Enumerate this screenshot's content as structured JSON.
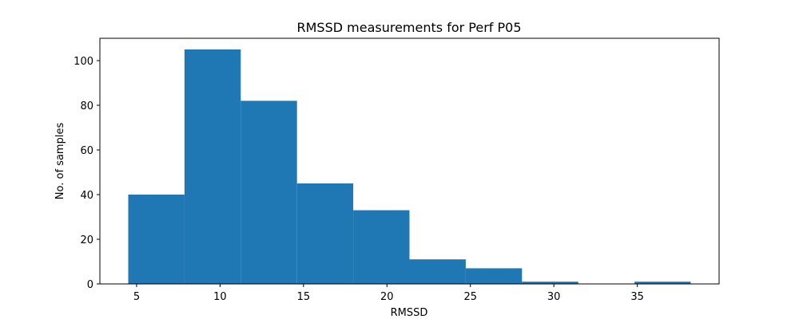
{
  "chart_data": {
    "type": "bar",
    "subtype": "histogram",
    "title": "RMSSD measurements for Perf P05",
    "xlabel": "RMSSD",
    "ylabel": "No. of samples",
    "bin_edges": [
      4.5,
      7.87,
      11.24,
      14.61,
      17.98,
      21.35,
      24.72,
      28.09,
      31.46,
      34.83,
      38.2
    ],
    "values": [
      40,
      105,
      82,
      45,
      33,
      11,
      7,
      1,
      0,
      1
    ],
    "xlim": [
      2.8,
      39.9
    ],
    "ylim": [
      0,
      110
    ],
    "xticks": [
      5,
      10,
      15,
      20,
      25,
      30,
      35
    ],
    "yticks": [
      0,
      20,
      40,
      60,
      80,
      100
    ],
    "bar_color": "#1f77b4",
    "grid": false,
    "legend": "none"
  }
}
